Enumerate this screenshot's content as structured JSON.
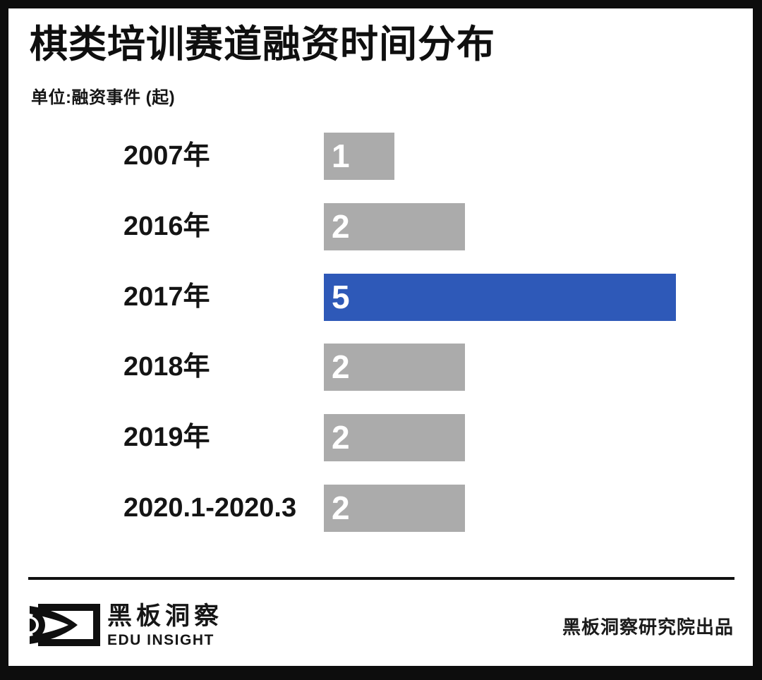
{
  "page": {
    "title": "棋类培训赛道融资时间分布",
    "unit_label": "单位:融资事件 (起)"
  },
  "chart_data": {
    "type": "bar",
    "orientation": "horizontal",
    "title": "棋类培训赛道融资时间分布",
    "unit": "融资事件(起)",
    "categories": [
      "2007年",
      "2016年",
      "2017年",
      "2018年",
      "2019年",
      "2020.1-2020.3"
    ],
    "values": [
      1,
      2,
      5,
      2,
      2,
      2
    ],
    "highlight_index": 2,
    "xlim": [
      0,
      5
    ],
    "grid": false,
    "legend": "none",
    "value_labels": "inside-left",
    "colors": {
      "bar": "#ababab",
      "highlight": "#2e59b8",
      "value_text": "#ffffff"
    }
  },
  "footer": {
    "logo_text_cn": "黑板洞察",
    "logo_text_en": "EDU INSIGHT",
    "credit": "黑板洞察研究院出品"
  }
}
